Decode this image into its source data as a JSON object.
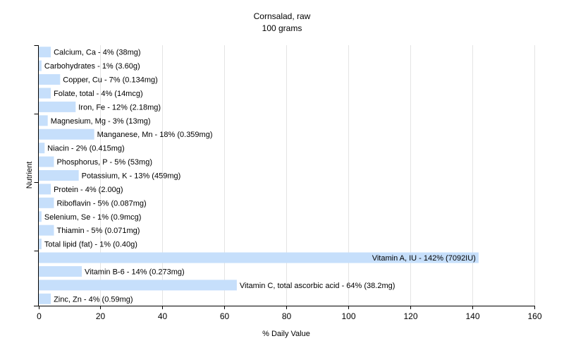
{
  "chart_data": {
    "type": "bar",
    "orientation": "horizontal",
    "title": "Cornsalad, raw",
    "subtitle": "100 grams",
    "xlabel": "% Daily Value",
    "ylabel": "Nutrient",
    "xlim": [
      0,
      160
    ],
    "x_ticks": [
      "0",
      "20",
      "40",
      "60",
      "80",
      "100",
      "120",
      "140",
      "160"
    ],
    "grid": "vertical",
    "legend": "none",
    "bar_color": "#c6dffb",
    "categories": [
      "Calcium, Ca",
      "Carbohydrates",
      "Copper, Cu",
      "Folate, total",
      "Iron, Fe",
      "Magnesium, Mg",
      "Manganese, Mn",
      "Niacin",
      "Phosphorus, P",
      "Potassium, K",
      "Protein",
      "Riboflavin",
      "Selenium, Se",
      "Thiamin",
      "Total lipid (fat)",
      "Vitamin A, IU",
      "Vitamin B-6",
      "Vitamin C, total ascorbic acid",
      "Zinc, Zn"
    ],
    "values": [
      4,
      1,
      7,
      4,
      12,
      3,
      18,
      2,
      5,
      13,
      4,
      5,
      1,
      5,
      1,
      142,
      14,
      64,
      4
    ],
    "labels": [
      "Calcium, Ca - 4% (38mg)",
      "Carbohydrates - 1% (3.60g)",
      "Copper, Cu - 7% (0.134mg)",
      "Folate, total - 4% (14mcg)",
      "Iron, Fe - 12% (2.18mg)",
      "Magnesium, Mg - 3% (13mg)",
      "Manganese, Mn - 18% (0.359mg)",
      "Niacin - 2% (0.415mg)",
      "Phosphorus, P - 5% (53mg)",
      "Potassium, K - 13% (459mg)",
      "Protein - 4% (2.00g)",
      "Riboflavin - 5% (0.087mg)",
      "Selenium, Se - 1% (0.9mcg)",
      "Thiamin - 5% (0.071mg)",
      "Total lipid (fat) - 1% (0.40g)",
      "Vitamin A, IU - 142% (7092IU)",
      "Vitamin B-6 - 14% (0.273mg)",
      "Vitamin C, total ascorbic acid - 64% (38.2mg)",
      "Zinc, Zn - 4% (0.59mg)"
    ]
  }
}
